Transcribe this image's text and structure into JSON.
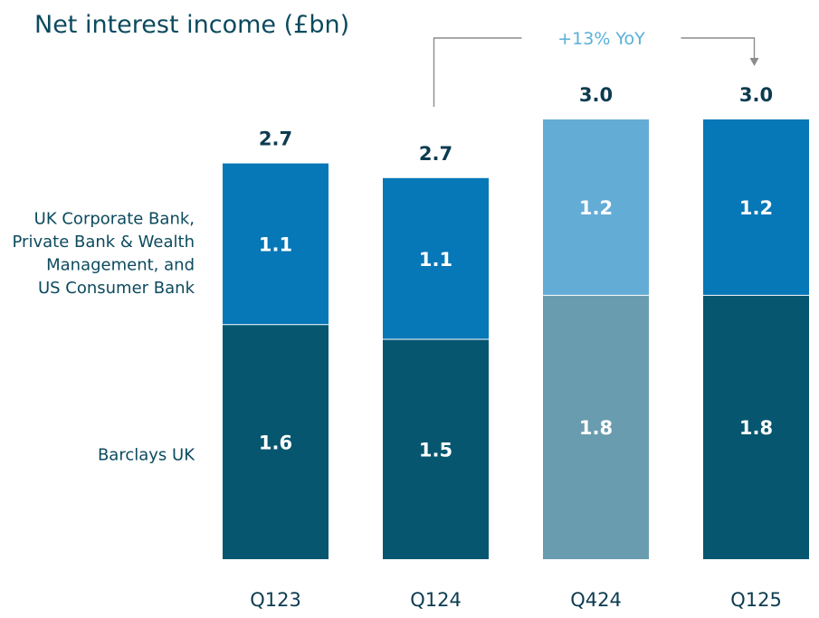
{
  "chart_data": {
    "type": "bar",
    "stacked": true,
    "title": "Net interest income (£bn)",
    "categories": [
      "Q123",
      "Q124",
      "Q424",
      "Q125"
    ],
    "series": [
      {
        "name": "Barclays UK",
        "values": [
          1.6,
          1.5,
          1.8,
          1.8
        ],
        "color": "#06566f",
        "highlight_color": "#6a9caf"
      },
      {
        "name": "UK Corporate Bank, Private Bank & Wealth Management, and US Consumer Bank",
        "legend_lines": [
          "UK Corporate Bank,",
          "Private Bank & Wealth",
          "Management, and",
          "US Consumer Bank"
        ],
        "values": [
          1.1,
          1.1,
          1.2,
          1.2
        ],
        "color": "#0677b7",
        "highlight_color": "#63acd6"
      }
    ],
    "totals": [
      "2.7",
      "2.7",
      "3.0",
      "3.0"
    ],
    "highlighted_category": "Q424",
    "annotation": {
      "text": "+13% YoY",
      "from": "Q124",
      "to": "Q125"
    },
    "ylim": [
      0,
      3.0
    ],
    "xlabel": "",
    "ylabel": "",
    "grid": false,
    "legend": "left"
  }
}
